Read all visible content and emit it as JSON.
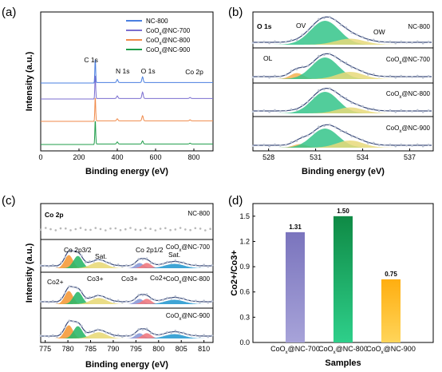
{
  "chart_data": [
    {
      "panel": "(a)",
      "type": "line",
      "xlabel": "Binding energy (eV)",
      "ylabel": "Intensity (a.u.)",
      "xlim": [
        0,
        900
      ],
      "xticks": [
        "0",
        "200",
        "400",
        "600",
        "800"
      ],
      "legend": {
        "placement": "top-right",
        "entries": [
          "NC-800",
          "CoOx@NC-700",
          "CoOx@NC-800",
          "CoOx@NC-900"
        ]
      },
      "peak_labels": [
        {
          "text": "C 1s",
          "x": 285
        },
        {
          "text": "N 1s",
          "x": 400
        },
        {
          "text": "O 1s",
          "x": 532
        },
        {
          "text": "Co 2p",
          "x": 780
        }
      ],
      "series": [
        {
          "name": "NC-800",
          "color": "#4a7fe0",
          "peaks": [
            {
              "x": 285,
              "h": 1.0
            },
            {
              "x": 400,
              "h": 0.12
            },
            {
              "x": 532,
              "h": 0.22
            }
          ]
        },
        {
          "name": "CoOx@NC-700",
          "color": "#7b6fd0",
          "peaks": [
            {
              "x": 285,
              "h": 1.0
            },
            {
              "x": 400,
              "h": 0.1
            },
            {
              "x": 532,
              "h": 0.25
            },
            {
              "x": 780,
              "h": 0.04
            }
          ]
        },
        {
          "name": "CoOx@NC-800",
          "color": "#f08a4a",
          "peaks": [
            {
              "x": 285,
              "h": 1.0
            },
            {
              "x": 400,
              "h": 0.08
            },
            {
              "x": 532,
              "h": 0.2
            },
            {
              "x": 780,
              "h": 0.04
            }
          ]
        },
        {
          "name": "CoOx@NC-900",
          "color": "#1f9d4a",
          "peaks": [
            {
              "x": 285,
              "h": 1.0
            },
            {
              "x": 400,
              "h": 0.08
            },
            {
              "x": 532,
              "h": 0.12
            },
            {
              "x": 780,
              "h": 0.03
            }
          ]
        }
      ]
    },
    {
      "panel": "(b)",
      "type": "line",
      "xlabel": "Binding energy (eV)",
      "xlim": [
        527,
        538.5
      ],
      "xticks": [
        "528",
        "531",
        "534",
        "537"
      ],
      "title": "O 1s",
      "samples": [
        "NC-800",
        "CoOx@NC-700",
        "CoOx@NC-800",
        "CoOx@NC-900"
      ],
      "component_labels": [
        "OV",
        "OL",
        "OW"
      ]
    },
    {
      "panel": "(c)",
      "type": "line",
      "xlabel": "Binding energy (eV)",
      "ylabel": "Intensity (a.u.)",
      "xlim": [
        774,
        812
      ],
      "xticks": [
        "775",
        "780",
        "785",
        "790",
        "795",
        "800",
        "805",
        "810"
      ],
      "title": "Co 2p",
      "samples": [
        "NC-800",
        "CoOx@NC-700",
        "CoOx@NC-800",
        "CoOx@NC-900"
      ],
      "annotations": [
        "Co 2p3/2",
        "Co 2p1/2",
        "Sat.",
        "Sat.",
        "Co2+",
        "Co3+",
        "Co3+",
        "Co2+"
      ]
    },
    {
      "panel": "(d)",
      "type": "bar",
      "xlabel": "Samples",
      "ylabel": "Co2+/Co3+",
      "ylim": [
        0,
        1.65
      ],
      "yticks": [
        "0.0",
        "0.3",
        "0.6",
        "0.9",
        "1.2",
        "1.5"
      ],
      "categories": [
        "CoOx@NC-700",
        "CoOx@NC-800",
        "CoOx@NC-900"
      ],
      "values": [
        1.31,
        1.5,
        0.75
      ],
      "value_labels": [
        "1.31",
        "1.50",
        "0.75"
      ],
      "colors": [
        "#8c88c8",
        "#22b06a",
        "#ffc22a"
      ]
    }
  ]
}
